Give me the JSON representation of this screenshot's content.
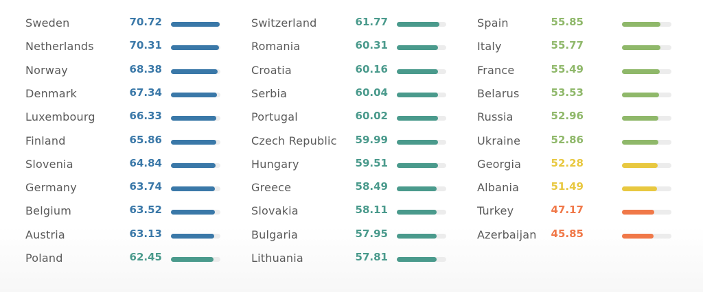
{
  "colors": {
    "blue": "#3a78a8",
    "teal": "#4a9a8c",
    "green": "#8fb86a",
    "yellow": "#e8c840",
    "orange": "#f07848",
    "track": "#ececec",
    "label": "#5a5a5a"
  },
  "chart_data": {
    "type": "bar",
    "orientation": "horizontal",
    "value_range": [
      0,
      72
    ],
    "columns": [
      [
        {
          "country": "Sweden",
          "value": 70.72,
          "color": "blue"
        },
        {
          "country": "Netherlands",
          "value": 70.31,
          "color": "blue"
        },
        {
          "country": "Norway",
          "value": 68.38,
          "color": "blue"
        },
        {
          "country": "Denmark",
          "value": 67.34,
          "color": "blue"
        },
        {
          "country": "Luxembourg",
          "value": 66.33,
          "color": "blue"
        },
        {
          "country": "Finland",
          "value": 65.86,
          "color": "blue"
        },
        {
          "country": "Slovenia",
          "value": 64.84,
          "color": "blue"
        },
        {
          "country": "Germany",
          "value": 63.74,
          "color": "blue"
        },
        {
          "country": "Belgium",
          "value": 63.52,
          "color": "blue"
        },
        {
          "country": "Austria",
          "value": 63.13,
          "color": "blue"
        },
        {
          "country": "Poland",
          "value": 62.45,
          "color": "teal"
        }
      ],
      [
        {
          "country": "Switzerland",
          "value": 61.77,
          "color": "teal"
        },
        {
          "country": "Romania",
          "value": 60.31,
          "color": "teal"
        },
        {
          "country": "Croatia",
          "value": 60.16,
          "color": "teal"
        },
        {
          "country": "Serbia",
          "value": 60.04,
          "color": "teal"
        },
        {
          "country": "Portugal",
          "value": 60.02,
          "color": "teal"
        },
        {
          "country": "Czech Republic",
          "value": 59.99,
          "color": "teal"
        },
        {
          "country": "Hungary",
          "value": 59.51,
          "color": "teal"
        },
        {
          "country": "Greece",
          "value": 58.49,
          "color": "teal"
        },
        {
          "country": "Slovakia",
          "value": 58.11,
          "color": "teal"
        },
        {
          "country": "Bulgaria",
          "value": 57.95,
          "color": "teal"
        },
        {
          "country": "Lithuania",
          "value": 57.81,
          "color": "teal"
        }
      ],
      [
        {
          "country": "Spain",
          "value": 55.85,
          "color": "green"
        },
        {
          "country": "Italy",
          "value": 55.77,
          "color": "green"
        },
        {
          "country": "France",
          "value": 55.49,
          "color": "green"
        },
        {
          "country": "Belarus",
          "value": 53.53,
          "color": "green"
        },
        {
          "country": "Russia",
          "value": 52.96,
          "color": "green"
        },
        {
          "country": "Ukraine",
          "value": 52.86,
          "color": "green"
        },
        {
          "country": "Georgia",
          "value": 52.28,
          "color": "yellow"
        },
        {
          "country": "Albania",
          "value": 51.49,
          "color": "yellow"
        },
        {
          "country": "Turkey",
          "value": 47.17,
          "color": "orange"
        },
        {
          "country": "Azerbaijan",
          "value": 45.85,
          "color": "orange"
        }
      ]
    ]
  }
}
